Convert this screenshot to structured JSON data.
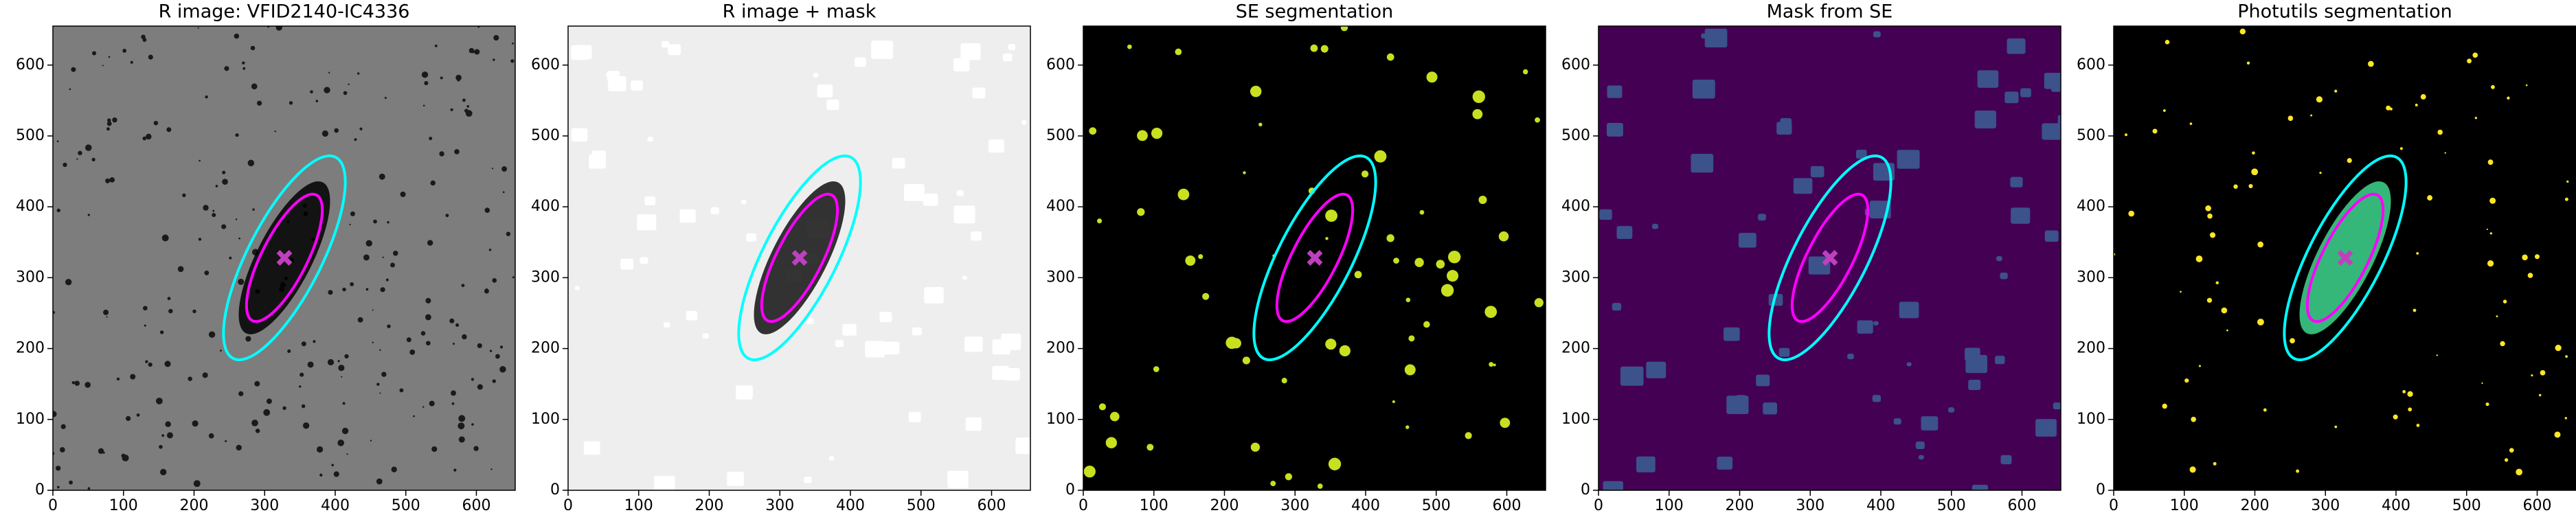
{
  "chart_data": [
    {
      "type": "image",
      "title": "R image: VFID2140-IC4336",
      "background": "#7d7d7d",
      "blob_color": "#1a1a1a",
      "galaxy_color": "#000000",
      "xlim": [
        0,
        655
      ],
      "ylim": [
        0,
        655
      ],
      "xticks": [
        0,
        100,
        200,
        300,
        400,
        500,
        600
      ],
      "yticks": [
        0,
        100,
        200,
        300,
        400,
        500,
        600
      ],
      "ellipses": [
        {
          "color": "#00ffff",
          "center": [
            328,
            328
          ],
          "semi_major": 160,
          "semi_minor": 52,
          "angle": 63
        },
        {
          "color": "#ff00ff",
          "center": [
            328,
            328
          ],
          "semi_major": 100,
          "semi_minor": 32,
          "angle": 63
        }
      ],
      "marker": {
        "color": "#bf40bf",
        "x": 328,
        "y": 328
      }
    },
    {
      "type": "image",
      "title": "R image + mask",
      "background": "#eeeeee",
      "blob_color": "#ffffff",
      "galaxy_color": "#111111",
      "xlim": [
        0,
        655
      ],
      "ylim": [
        0,
        655
      ],
      "xticks": [
        0,
        100,
        200,
        300,
        400,
        500,
        600
      ],
      "yticks": [
        0,
        100,
        200,
        300,
        400,
        500,
        600
      ],
      "ellipses": [
        {
          "color": "#00ffff",
          "center": [
            328,
            328
          ],
          "semi_major": 160,
          "semi_minor": 52,
          "angle": 63
        },
        {
          "color": "#ff00ff",
          "center": [
            328,
            328
          ],
          "semi_major": 100,
          "semi_minor": 32,
          "angle": 63
        }
      ],
      "marker": {
        "color": "#bf40bf",
        "x": 328,
        "y": 328
      }
    },
    {
      "type": "image",
      "title": "SE segmentation",
      "background": "#000000",
      "blob_color": "#c8e020",
      "xlim": [
        0,
        655
      ],
      "ylim": [
        0,
        655
      ],
      "xticks": [
        0,
        100,
        200,
        300,
        400,
        500,
        600
      ],
      "yticks": [
        0,
        100,
        200,
        300,
        400,
        500,
        600
      ],
      "ellipses": [
        {
          "color": "#00ffff",
          "center": [
            328,
            328
          ],
          "semi_major": 160,
          "semi_minor": 52,
          "angle": 63
        },
        {
          "color": "#ff00ff",
          "center": [
            328,
            328
          ],
          "semi_major": 100,
          "semi_minor": 32,
          "angle": 63
        }
      ],
      "marker": {
        "color": "#bf40bf",
        "x": 328,
        "y": 328
      }
    },
    {
      "type": "image",
      "title": "Mask from SE",
      "background": "#440154",
      "blob_color": "#3b528b",
      "xlim": [
        0,
        655
      ],
      "ylim": [
        0,
        655
      ],
      "xticks": [
        0,
        100,
        200,
        300,
        400,
        500,
        600
      ],
      "yticks": [
        0,
        100,
        200,
        300,
        400,
        500,
        600
      ],
      "ellipses": [
        {
          "color": "#00ffff",
          "center": [
            328,
            328
          ],
          "semi_major": 160,
          "semi_minor": 52,
          "angle": 63
        },
        {
          "color": "#ff00ff",
          "center": [
            328,
            328
          ],
          "semi_major": 100,
          "semi_minor": 32,
          "angle": 63
        }
      ],
      "marker": {
        "color": "#bf40bf",
        "x": 328,
        "y": 328
      }
    },
    {
      "type": "image",
      "title": "Photutils segmentation",
      "background": "#000000",
      "blob_color": "#fde725",
      "galaxy_color": "#35b779",
      "xlim": [
        0,
        655
      ],
      "ylim": [
        0,
        655
      ],
      "xticks": [
        0,
        100,
        200,
        300,
        400,
        500,
        600
      ],
      "yticks": [
        0,
        100,
        200,
        300,
        400,
        500,
        600
      ],
      "ellipses": [
        {
          "color": "#00ffff",
          "center": [
            328,
            328
          ],
          "semi_major": 160,
          "semi_minor": 52,
          "angle": 63
        },
        {
          "color": "#ff00ff",
          "center": [
            328,
            328
          ],
          "semi_major": 100,
          "semi_minor": 32,
          "angle": 63
        }
      ],
      "marker": {
        "color": "#bf40bf",
        "x": 328,
        "y": 328
      }
    }
  ]
}
